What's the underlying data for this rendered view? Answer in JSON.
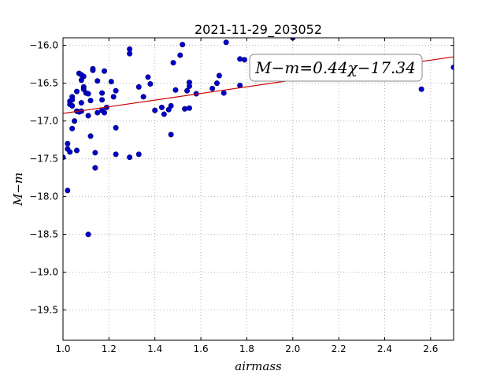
{
  "chart_data": {
    "type": "scatter",
    "title": "2021-11-29_203052",
    "xlabel": "airmass",
    "ylabel": "M−m",
    "xlim": [
      1.0,
      2.7
    ],
    "ylim": [
      -19.9,
      -15.9
    ],
    "y_inverted": true,
    "x_ticks": [
      1.0,
      1.2,
      1.4,
      1.6,
      1.8,
      2.0,
      2.2,
      2.4,
      2.6
    ],
    "x_tick_labels": [
      "1.0",
      "1.2",
      "1.4",
      "1.6",
      "1.8",
      "2.0",
      "2.2",
      "2.4",
      "2.6"
    ],
    "y_ticks": [
      -16.0,
      -16.5,
      -17.0,
      -17.5,
      -18.0,
      -18.5,
      -19.0,
      -19.5
    ],
    "y_tick_labels": [
      "−16.0",
      "−16.5",
      "−17.0",
      "−17.5",
      "−18.0",
      "−18.5",
      "−19.0",
      "−19.5"
    ],
    "grid": true,
    "fit": {
      "label": "M−m=0.44χ−17.34",
      "slope": 0.44,
      "intercept": -17.34,
      "color": "#cc0000"
    },
    "marker_color": "#0000cc",
    "series": [
      {
        "points": [
          [
            1.0,
            -17.48
          ],
          [
            1.02,
            -17.3
          ],
          [
            1.02,
            -17.37
          ],
          [
            1.02,
            -17.92
          ],
          [
            1.03,
            -17.41
          ],
          [
            1.03,
            -16.74
          ],
          [
            1.03,
            -16.78
          ],
          [
            1.04,
            -16.68
          ],
          [
            1.04,
            -16.72
          ],
          [
            1.04,
            -16.8
          ],
          [
            1.04,
            -17.1
          ],
          [
            1.05,
            -17.0
          ],
          [
            1.06,
            -16.61
          ],
          [
            1.06,
            -16.87
          ],
          [
            1.06,
            -17.39
          ],
          [
            1.07,
            -16.37
          ],
          [
            1.07,
            -16.88
          ],
          [
            1.08,
            -16.39
          ],
          [
            1.08,
            -16.46
          ],
          [
            1.08,
            -16.76
          ],
          [
            1.08,
            -16.87
          ],
          [
            1.09,
            -16.41
          ],
          [
            1.09,
            -16.55
          ],
          [
            1.09,
            -16.58
          ],
          [
            1.1,
            -16.63
          ],
          [
            1.11,
            -16.64
          ],
          [
            1.11,
            -16.93
          ],
          [
            1.11,
            -18.5
          ],
          [
            1.12,
            -16.73
          ],
          [
            1.12,
            -17.2
          ],
          [
            1.13,
            -16.33
          ],
          [
            1.13,
            -16.31
          ],
          [
            1.14,
            -17.42
          ],
          [
            1.14,
            -17.62
          ],
          [
            1.15,
            -16.47
          ],
          [
            1.15,
            -16.89
          ],
          [
            1.17,
            -16.63
          ],
          [
            1.17,
            -16.72
          ],
          [
            1.17,
            -16.86
          ],
          [
            1.18,
            -16.34
          ],
          [
            1.18,
            -16.89
          ],
          [
            1.19,
            -16.82
          ],
          [
            1.21,
            -16.48
          ],
          [
            1.22,
            -16.68
          ],
          [
            1.23,
            -16.6
          ],
          [
            1.23,
            -17.09
          ],
          [
            1.23,
            -17.44
          ],
          [
            1.29,
            -16.05
          ],
          [
            1.29,
            -16.11
          ],
          [
            1.29,
            -17.48
          ],
          [
            1.33,
            -16.55
          ],
          [
            1.33,
            -17.44
          ],
          [
            1.35,
            -16.68
          ],
          [
            1.37,
            -16.42
          ],
          [
            1.38,
            -16.51
          ],
          [
            1.4,
            -16.86
          ],
          [
            1.43,
            -16.82
          ],
          [
            1.44,
            -16.91
          ],
          [
            1.46,
            -16.85
          ],
          [
            1.47,
            -16.8
          ],
          [
            1.47,
            -17.18
          ],
          [
            1.48,
            -16.23
          ],
          [
            1.49,
            -16.59
          ],
          [
            1.51,
            -16.13
          ],
          [
            1.52,
            -15.99
          ],
          [
            1.53,
            -16.84
          ],
          [
            1.54,
            -16.6
          ],
          [
            1.55,
            -16.49
          ],
          [
            1.55,
            -16.83
          ],
          [
            1.55,
            -16.54
          ],
          [
            1.58,
            -16.64
          ],
          [
            1.65,
            -16.57
          ],
          [
            1.67,
            -16.5
          ],
          [
            1.68,
            -16.4
          ],
          [
            1.7,
            -16.63
          ],
          [
            1.71,
            -15.96
          ],
          [
            1.77,
            -16.18
          ],
          [
            1.77,
            -16.53
          ],
          [
            1.79,
            -16.19
          ],
          [
            2.0,
            -15.9
          ],
          [
            2.56,
            -16.58
          ],
          [
            2.7,
            -16.29
          ]
        ]
      }
    ]
  }
}
